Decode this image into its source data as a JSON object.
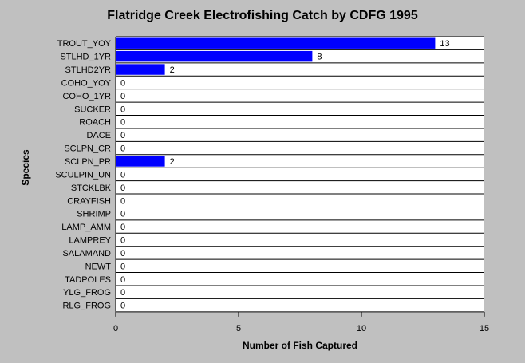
{
  "chart_data": {
    "type": "bar",
    "orientation": "horizontal",
    "title": "Flatridge Creek Electrofishing Catch by CDFG 1995",
    "xlabel": "Number of Fish Captured",
    "ylabel": "Species",
    "xlim": [
      0,
      15
    ],
    "xticks": [
      0,
      5,
      10,
      15
    ],
    "grid": "horizontal row lines",
    "bar_color": "#0000ff",
    "categories": [
      "TROUT_YOY",
      "STLHD_1YR",
      "STLHD2YR",
      "COHO_YOY",
      "COHO_1YR",
      "SUCKER",
      "ROACH",
      "DACE",
      "SCLPN_CR",
      "SCLPN_PR",
      "SCULPIN_UN",
      "STCKLBK",
      "CRAYFISH",
      "SHRIMP",
      "LAMP_AMM",
      "LAMPREY",
      "SALAMAND",
      "NEWT",
      "TADPOLES",
      "YLG_FROG",
      "RLG_FROG"
    ],
    "values": [
      13,
      8,
      2,
      0,
      0,
      0,
      0,
      0,
      0,
      2,
      0,
      0,
      0,
      0,
      0,
      0,
      0,
      0,
      0,
      0,
      0
    ]
  }
}
